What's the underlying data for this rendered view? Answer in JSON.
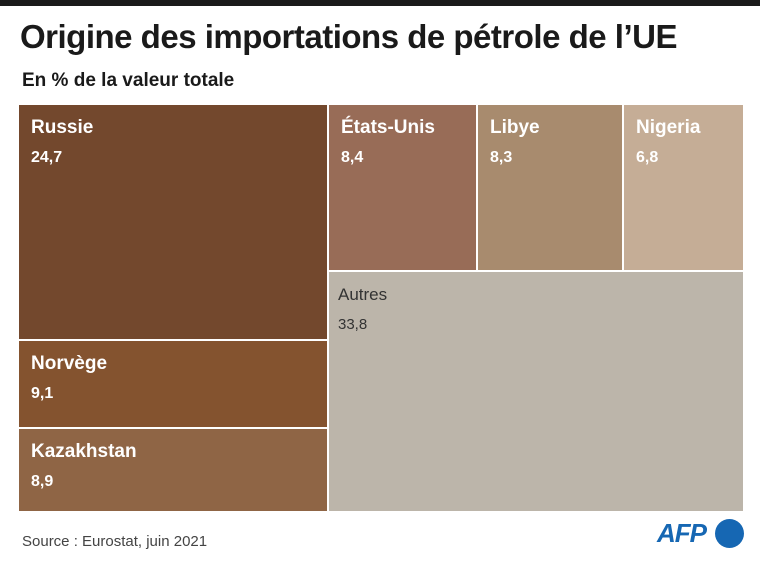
{
  "title": "Origine des importations de pétrole de l’UE",
  "subtitle": "En % de la valeur totale",
  "source": "Source : Eurostat, juin 2021",
  "logo": {
    "text": "AFP",
    "color": "#1667b3"
  },
  "chart_data": {
    "type": "treemap",
    "unit": "%",
    "items": [
      {
        "name": "Russie",
        "value_label": "24,7",
        "value": 24.7,
        "color": "#73482d",
        "text_color": "#ffffff"
      },
      {
        "name": "Norvège",
        "value_label": "9,1",
        "value": 9.1,
        "color": "#84532f",
        "text_color": "#ffffff"
      },
      {
        "name": "Kazakhstan",
        "value_label": "8,9",
        "value": 8.9,
        "color": "#8f6545",
        "text_color": "#ffffff"
      },
      {
        "name": "États-Unis",
        "value_label": "8,4",
        "value": 8.4,
        "color": "#986c57",
        "text_color": "#ffffff"
      },
      {
        "name": "Libye",
        "value_label": "8,3",
        "value": 8.3,
        "color": "#a88b6e",
        "text_color": "#ffffff"
      },
      {
        "name": "Nigeria",
        "value_label": "6,8",
        "value": 6.8,
        "color": "#c5ad96",
        "text_color": "#ffffff"
      },
      {
        "name": "Autres",
        "value_label": "33,8",
        "value": 33.8,
        "color": "#bcb5aa",
        "text_color": "#333333"
      }
    ]
  }
}
